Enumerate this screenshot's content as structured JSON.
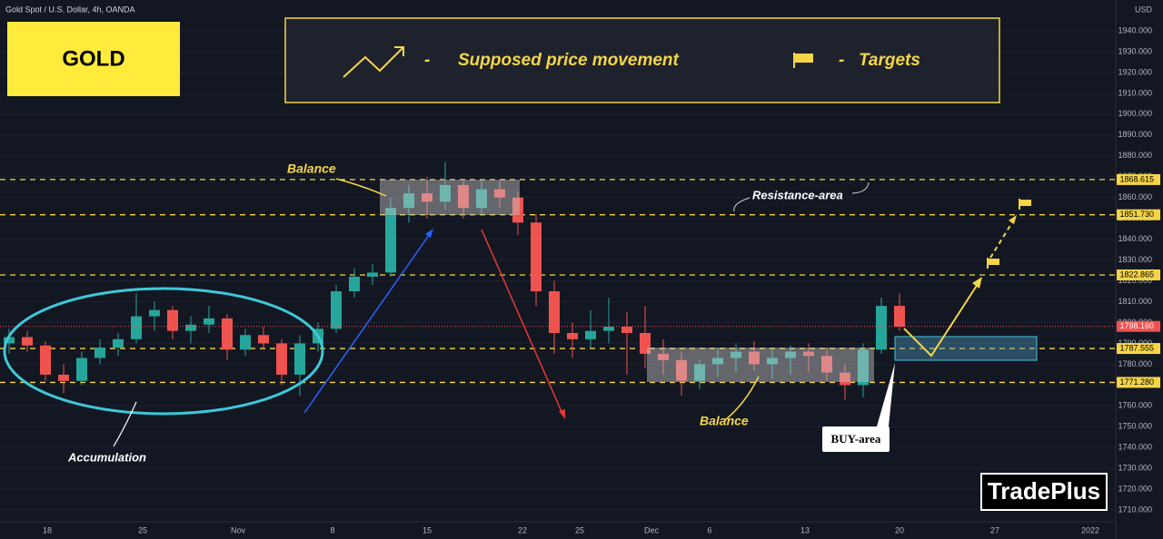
{
  "chart_data": {
    "type": "candlestick",
    "title": "Gold Spot / U.S. Dollar, 4h, OANDA",
    "currency": "USD",
    "badge": "GOLD",
    "legend": {
      "dash1": "-",
      "movement": "Supposed price movement",
      "dash2": "-",
      "targets": "Targets"
    },
    "annotations": {
      "balance_top": "Balance",
      "resistance": "Resistance-area",
      "balance_bottom": "Balance",
      "accumulation": "Accumulation",
      "buy_area": "BUY-area"
    },
    "watermark": "TradePlus",
    "x_axis_labels": [
      "18",
      "25",
      "Nov",
      "8",
      "15",
      "22",
      "25",
      "Dec",
      "6",
      "13",
      "20",
      "27",
      "2022"
    ],
    "open": [
      1790,
      1793,
      1789,
      1775,
      1772,
      1783,
      1788,
      1792,
      1803,
      1806,
      1796,
      1799,
      1802,
      1787,
      1794,
      1790,
      1775,
      1790,
      1797,
      1815,
      1822,
      1824,
      1855,
      1862,
      1858,
      1866,
      1855,
      1864,
      1860,
      1848,
      1815,
      1795,
      1792,
      1796,
      1798,
      1795,
      1785,
      1782,
      1772,
      1780,
      1783,
      1786,
      1780,
      1783,
      1786,
      1784,
      1776,
      1770,
      1787,
      1808
    ],
    "high": [
      1797,
      1796,
      1791,
      1780,
      1786,
      1792,
      1795,
      1814,
      1810,
      1808,
      1803,
      1808,
      1804,
      1797,
      1798,
      1792,
      1794,
      1800,
      1818,
      1826,
      1828,
      1860,
      1866,
      1870,
      1877,
      1868,
      1869,
      1868,
      1863,
      1852,
      1820,
      1800,
      1806,
      1812,
      1805,
      1808,
      1792,
      1786,
      1782,
      1788,
      1790,
      1791,
      1787,
      1789,
      1790,
      1788,
      1780,
      1790,
      1812,
      1814
    ],
    "low": [
      1785,
      1786,
      1772,
      1766,
      1770,
      1780,
      1784,
      1790,
      1796,
      1792,
      1790,
      1795,
      1782,
      1784,
      1787,
      1770,
      1765,
      1786,
      1795,
      1812,
      1818,
      1822,
      1848,
      1850,
      1854,
      1850,
      1852,
      1855,
      1842,
      1808,
      1785,
      1783,
      1788,
      1790,
      1775,
      1778,
      1775,
      1765,
      1768,
      1774,
      1776,
      1777,
      1773,
      1775,
      1776,
      1772,
      1763,
      1764,
      1785,
      1796
    ],
    "close": [
      1793,
      1789,
      1775,
      1772,
      1783,
      1788,
      1792,
      1803,
      1806,
      1796,
      1799,
      1802,
      1787,
      1794,
      1790,
      1775,
      1790,
      1797,
      1815,
      1822,
      1824,
      1855,
      1862,
      1858,
      1866,
      1855,
      1864,
      1860,
      1848,
      1815,
      1795,
      1792,
      1796,
      1798,
      1795,
      1785,
      1782,
      1772,
      1780,
      1783,
      1786,
      1780,
      1783,
      1786,
      1784,
      1776,
      1770,
      1787,
      1808,
      1798
    ],
    "up_color": "#26a69a",
    "down_color": "#ef5350",
    "ylim": [
      1704.4,
      1954.8
    ],
    "yticks": [
      {
        "value": 1710,
        "label": "1710.000"
      },
      {
        "value": 1720,
        "label": "1720.000"
      },
      {
        "value": 1730,
        "label": "1730.000"
      },
      {
        "value": 1740,
        "label": "1740.000"
      },
      {
        "value": 1750,
        "label": "1750.000"
      },
      {
        "value": 1760,
        "label": "1760.000"
      },
      {
        "value": 1770,
        "label": "1770.000"
      },
      {
        "value": 1780,
        "label": "1780.000"
      },
      {
        "value": 1790,
        "label": "1790.000"
      },
      {
        "value": 1800,
        "label": "1800.000"
      },
      {
        "value": 1810,
        "label": "1810.000"
      },
      {
        "value": 1820,
        "label": "1820.000"
      },
      {
        "value": 1830,
        "label": "1830.000"
      },
      {
        "value": 1840,
        "label": "1840.000"
      },
      {
        "value": 1850,
        "label": "1850.000"
      },
      {
        "value": 1860,
        "label": "1860.000"
      },
      {
        "value": 1870,
        "label": "1870.000"
      },
      {
        "value": 1880,
        "label": "1880.000"
      },
      {
        "value": 1890,
        "label": "1890.000"
      },
      {
        "value": 1900,
        "label": "1900.000"
      },
      {
        "value": 1910,
        "label": "1910.000"
      },
      {
        "value": 1920,
        "label": "1920.000"
      },
      {
        "value": 1930,
        "label": "1930.000"
      },
      {
        "value": 1940,
        "label": "1940.000"
      }
    ],
    "levels": [
      1868.615,
      {
        "value": 1851.73,
        "label": "1851.730"
      },
      1822.865,
      1787.555,
      {
        "value": 1771.28,
        "label": "1771.280"
      }
    ],
    "level_color": "#f5d547",
    "last_price": {
      "value": 1798.16,
      "label": "1798.160"
    },
    "last_price_color": "#ef5350"
  }
}
